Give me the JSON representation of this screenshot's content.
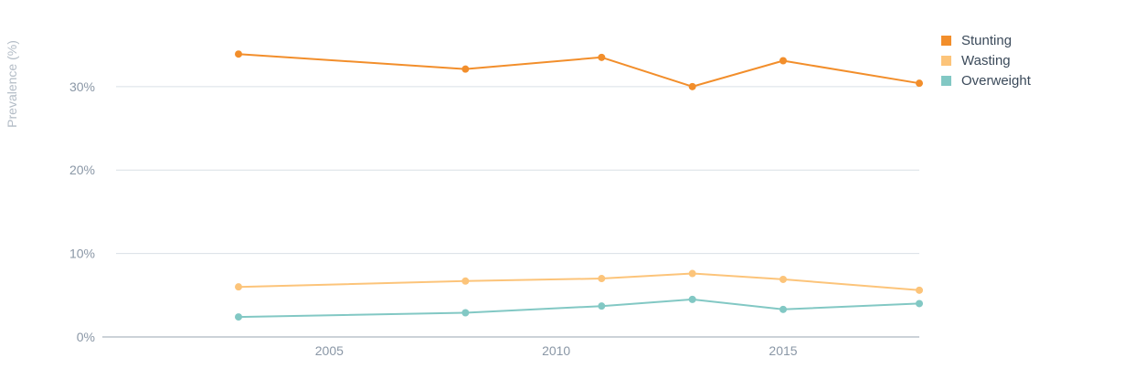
{
  "chart_data": {
    "type": "line",
    "title": "",
    "xlabel": "",
    "ylabel": "Prevalence (%)",
    "x": [
      2003,
      2008,
      2011,
      2013,
      2015,
      2018
    ],
    "xticks": [
      2005,
      2010,
      2015
    ],
    "xtick_labels": [
      "2005",
      "2010",
      "2015"
    ],
    "xlim": [
      2000,
      2018
    ],
    "yticks": [
      0,
      10,
      20,
      30
    ],
    "ytick_labels": [
      "0%",
      "10%",
      "20%",
      "30%"
    ],
    "ylim": [
      0,
      36
    ],
    "grid": true,
    "legend": "top-right",
    "series": [
      {
        "name": "Stunting",
        "color": "#f28e2b",
        "values": [
          33.9,
          32.1,
          33.5,
          30.0,
          33.1,
          30.4
        ]
      },
      {
        "name": "Wasting",
        "color": "#fcc47a",
        "values": [
          6.0,
          6.7,
          7.0,
          7.6,
          6.9,
          5.6
        ]
      },
      {
        "name": "Overweight",
        "color": "#82c8c4",
        "values": [
          2.4,
          2.9,
          3.7,
          4.5,
          3.3,
          4.0
        ]
      }
    ]
  }
}
